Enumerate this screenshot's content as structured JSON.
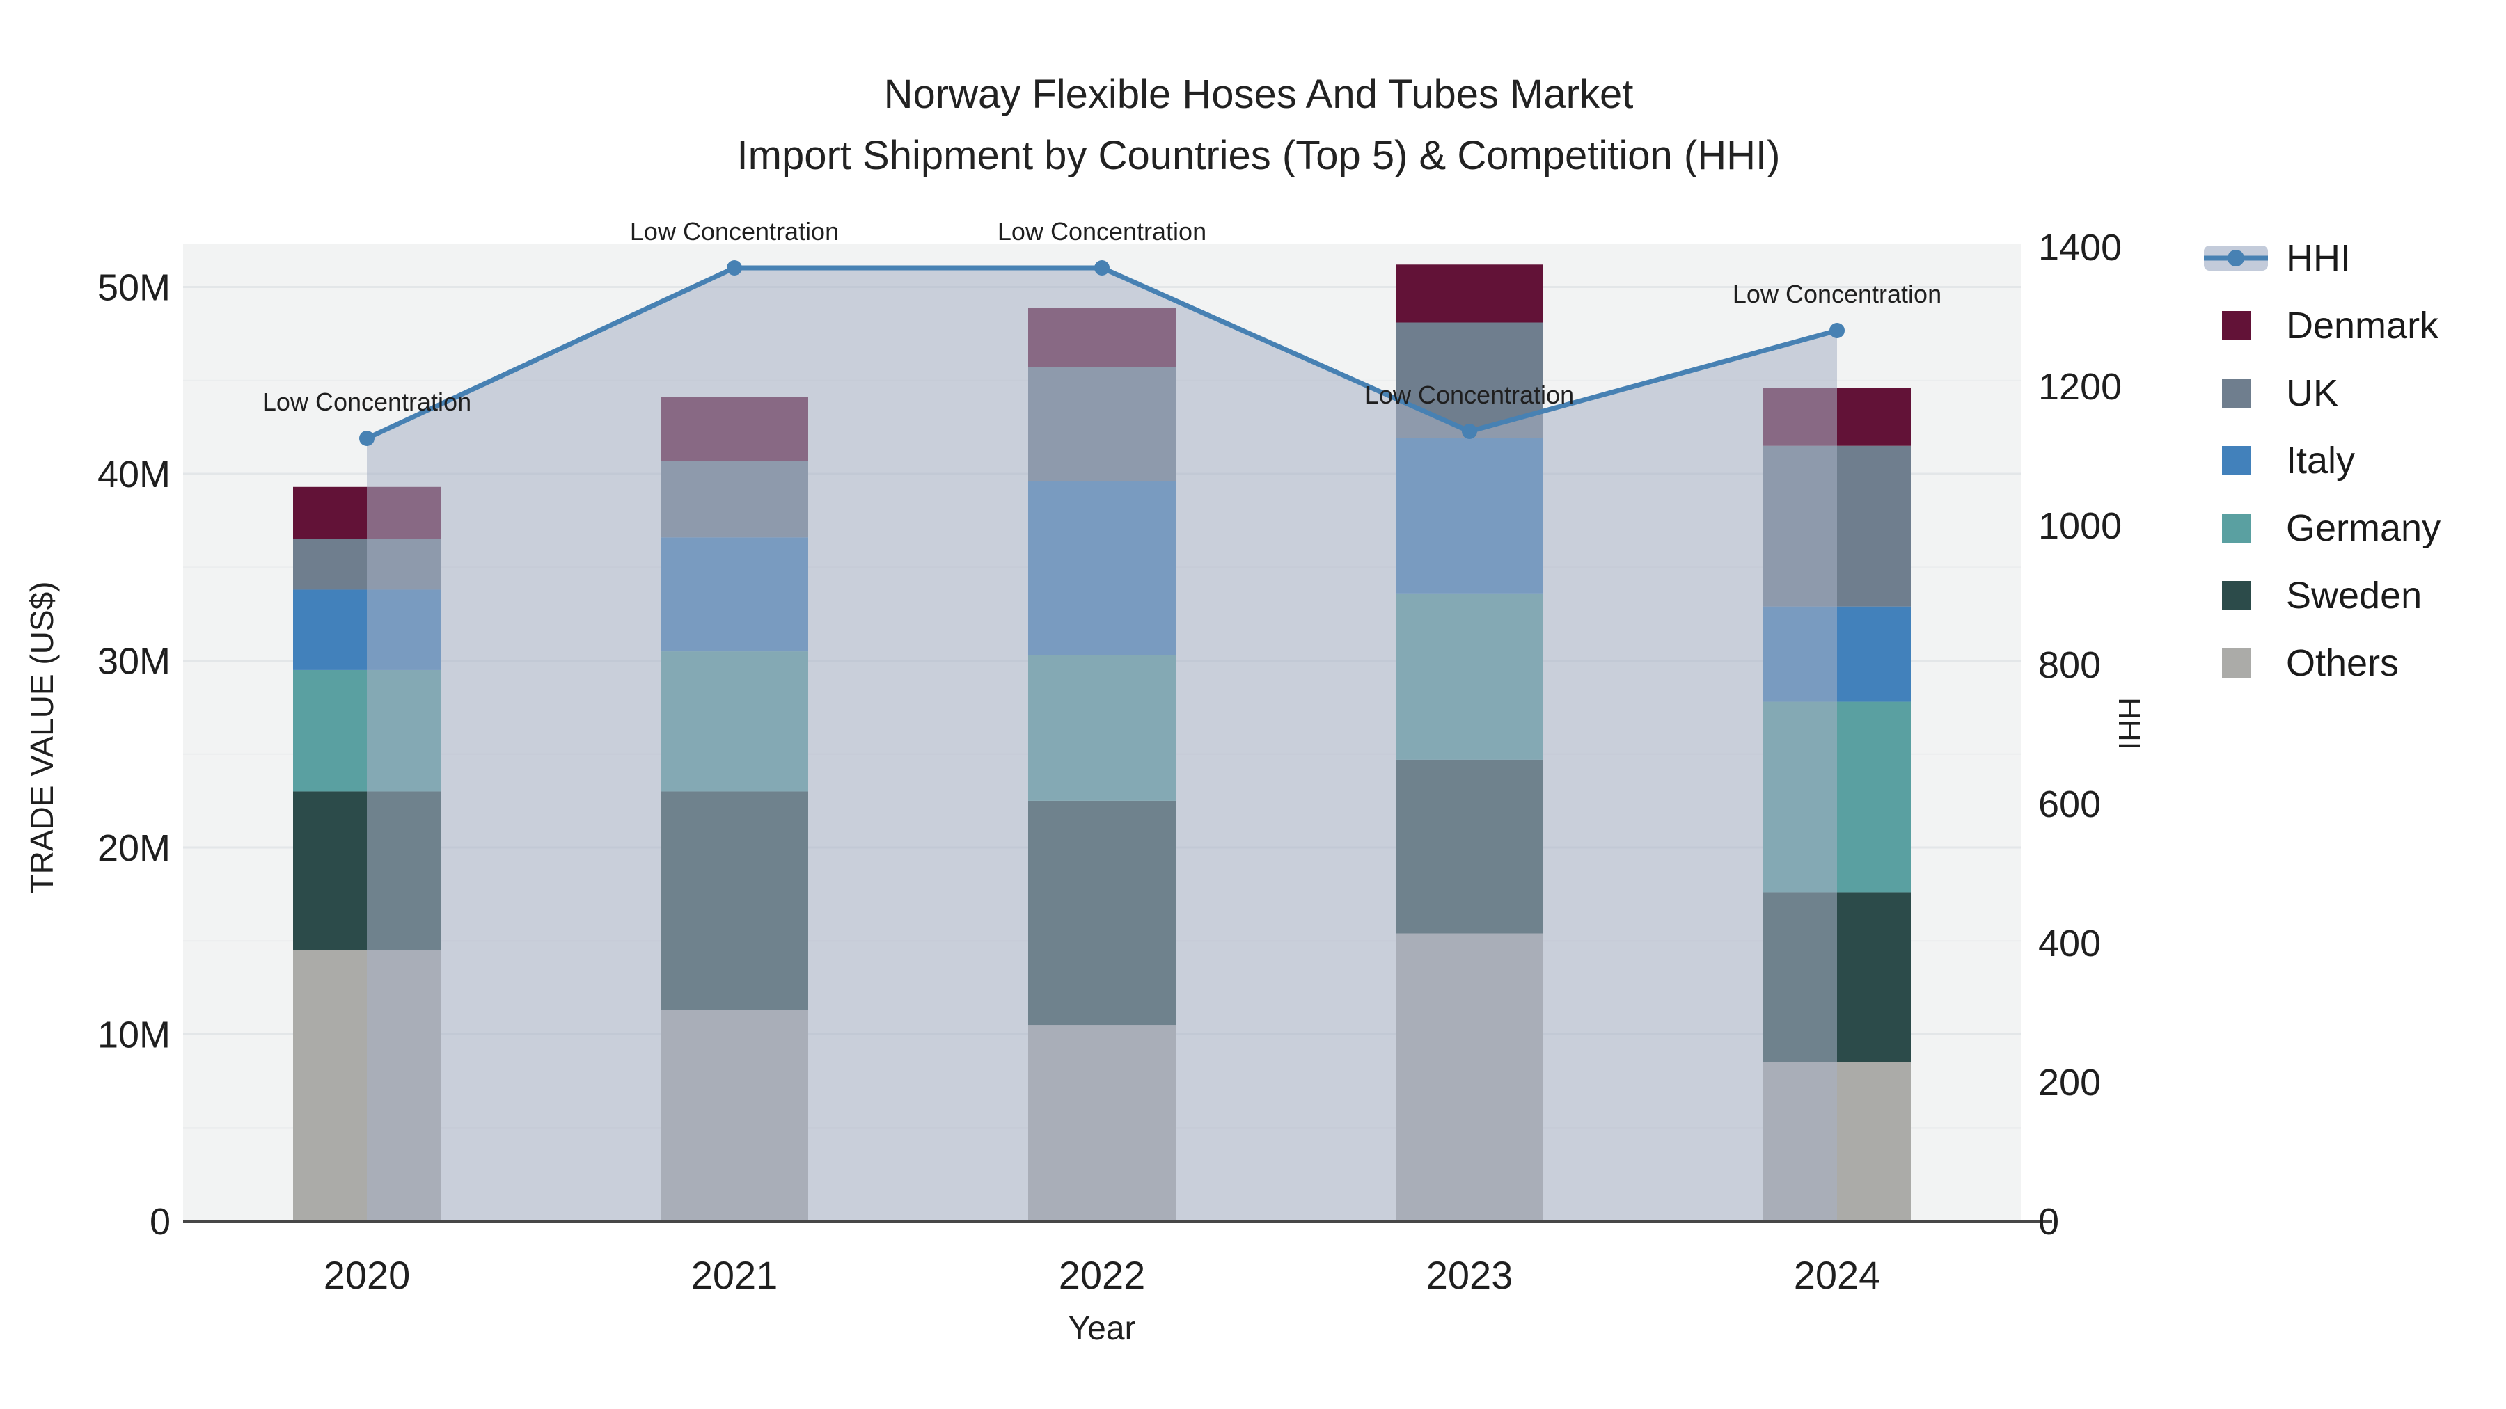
{
  "chart_data": {
    "type": "bar",
    "subtype": "stacked-bars-with-line-overlay",
    "title_line1": "Norway Flexible Hoses And Tubes Market",
    "title_line2": "Import Shipment by Countries (Top 5) & Competition (HHI)",
    "xlabel": "Year",
    "ylabel_left": "TRADE VALUE (US$)",
    "ylabel_right": "HHI",
    "categories": [
      "2020",
      "2021",
      "2022",
      "2023",
      "2024"
    ],
    "stack_order_bottom_to_top": [
      "Others",
      "Sweden",
      "Germany",
      "Italy",
      "UK",
      "Denmark"
    ],
    "series": [
      {
        "name": "Denmark",
        "unit": "M US$",
        "values": [
          2.8,
          3.4,
          3.2,
          3.1,
          3.1
        ]
      },
      {
        "name": "UK",
        "unit": "M US$",
        "values": [
          2.7,
          4.1,
          6.1,
          6.2,
          8.6
        ]
      },
      {
        "name": "Italy",
        "unit": "M US$",
        "values": [
          4.3,
          6.1,
          9.3,
          8.3,
          5.1
        ]
      },
      {
        "name": "Germany",
        "unit": "M US$",
        "values": [
          6.5,
          7.5,
          7.8,
          8.9,
          10.2
        ]
      },
      {
        "name": "Sweden",
        "unit": "M US$",
        "values": [
          8.5,
          11.7,
          12.0,
          9.3,
          9.1
        ]
      },
      {
        "name": "Others",
        "unit": "M US$",
        "values": [
          14.5,
          11.3,
          10.5,
          15.4,
          8.5
        ]
      }
    ],
    "bar_totals_m": [
      39.3,
      44.1,
      48.9,
      51.2,
      44.6
    ],
    "line_series": {
      "name": "HHI",
      "values": [
        1125,
        1370,
        1370,
        1135,
        1280
      ],
      "has_area_fill": true
    },
    "annotations": [
      {
        "x": "2020",
        "text": "Low Concentration"
      },
      {
        "x": "2021",
        "text": "Low Concentration"
      },
      {
        "x": "2022",
        "text": "Low Concentration"
      },
      {
        "x": "2023",
        "text": "Low Concentration"
      },
      {
        "x": "2024",
        "text": "Low Concentration"
      }
    ],
    "y_left_axis": {
      "range_m": [
        0,
        52.3
      ],
      "tick_labels": [
        "0",
        "10M",
        "20M",
        "30M",
        "40M",
        "50M"
      ],
      "tick_values_m": [
        0,
        10,
        20,
        30,
        40,
        50
      ]
    },
    "y_right_axis": {
      "range": [
        0,
        1400
      ],
      "tick_labels": [
        "0",
        "200",
        "400",
        "600",
        "800",
        "1000",
        "1200",
        "1400"
      ],
      "tick_values": [
        0,
        200,
        400,
        600,
        800,
        1000,
        1200,
        1400
      ]
    },
    "legend": {
      "position": "right",
      "entries": [
        "HHI",
        "Denmark",
        "UK",
        "Italy",
        "Germany",
        "Sweden",
        "Others"
      ]
    },
    "grid": {
      "major_interval_m": 10,
      "minor_interval_m": 5,
      "visible": true
    },
    "colors": {
      "Denmark": "#621237",
      "UK": "#6F7E8E",
      "Italy": "#4281BB",
      "Germany": "#5AA0A1",
      "Sweden": "#2C4B4A",
      "Others": "#ABABA8",
      "hhi_line": "#4781B3",
      "hhi_fill": "rgba(167,177,196,0.55)",
      "hhi_legend_band": "#C3CBDA",
      "plot_bg": "#F2F3F3",
      "grid_major": "#E3E6E8",
      "grid_minor": "#EBEDEE",
      "axis_line": "#474747",
      "text": "#1f1f1f"
    }
  }
}
